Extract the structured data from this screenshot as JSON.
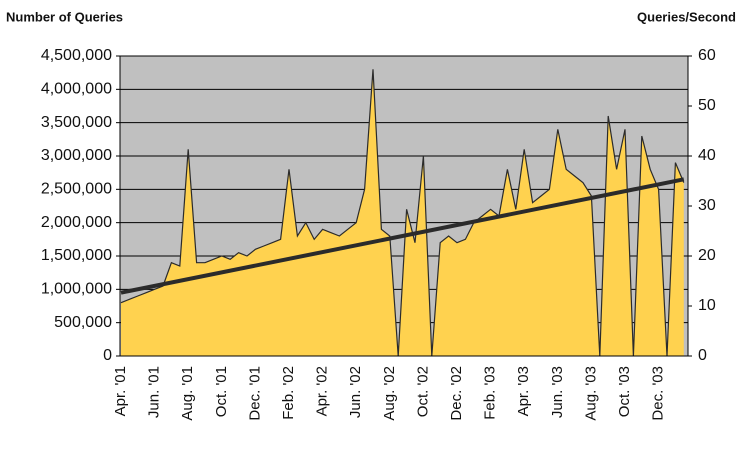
{
  "chart_data": {
    "type": "area",
    "y_axis_label": "Number of Queries",
    "y2_axis_label": "Queries/Second",
    "categories": [
      "Apr. '01",
      null,
      null,
      null,
      "Jun. '01",
      null,
      null,
      null,
      "Aug. '01",
      null,
      null,
      null,
      "Oct. '01",
      null,
      null,
      null,
      "Dec. '01",
      null,
      null,
      null,
      "Feb. '02",
      null,
      null,
      null,
      "Apr. '02",
      null,
      null,
      null,
      "Jun. '02",
      null,
      null,
      null,
      "Aug. '02",
      null,
      null,
      null,
      "Oct. '02",
      null,
      null,
      null,
      "Dec. '02",
      null,
      null,
      null,
      "Feb. '03",
      null,
      null,
      null,
      "Apr. '03",
      null,
      null,
      null,
      "Jun. '03",
      null,
      null,
      null,
      "Aug. '03",
      null,
      null,
      null,
      "Oct. '03",
      null,
      null,
      null,
      "Dec. '03",
      null,
      null,
      null
    ],
    "series": [
      {
        "name": "Number of Queries",
        "color": "#ffd24f",
        "line_color": "#2b2b2b",
        "values": [
          800000,
          850000,
          900000,
          950000,
          1000000,
          1050000,
          1400000,
          1350000,
          3100000,
          1400000,
          1400000,
          1450000,
          1500000,
          1450000,
          1550000,
          1500000,
          1600000,
          1650000,
          1700000,
          1750000,
          2800000,
          1800000,
          2000000,
          1750000,
          1900000,
          1850000,
          1800000,
          1900000,
          2000000,
          2500000,
          4300000,
          1900000,
          1800000,
          0,
          2200000,
          1700000,
          3000000,
          0,
          1700000,
          1800000,
          1700000,
          1750000,
          2000000,
          2100000,
          2200000,
          2100000,
          2800000,
          2200000,
          3100000,
          2300000,
          2400000,
          2500000,
          3400000,
          2800000,
          2700000,
          2600000,
          2400000,
          0,
          3600000,
          2800000,
          3400000,
          0,
          3300000,
          2800000,
          2500000,
          0,
          2900000,
          2600000
        ]
      }
    ],
    "trend": {
      "color": "#2b2b2b",
      "values": [
        950000,
        2650000
      ]
    },
    "ylim": [
      0,
      4500000
    ],
    "yticks": [
      0,
      {
        "value": 500000,
        "label": "500,000"
      },
      {
        "value": 1000000,
        "label": "1,000,000"
      },
      {
        "value": 1500000,
        "label": "1,500,000"
      },
      {
        "value": 2000000,
        "label": "2,000,000"
      },
      {
        "value": 2500000,
        "label": "2,500,000"
      },
      {
        "value": 3000000,
        "label": "3,000,000"
      },
      {
        "value": 3500000,
        "label": "3,500,000"
      },
      {
        "value": 4000000,
        "label": "4,000,000"
      },
      {
        "value": 4500000,
        "label": "4,500,000"
      }
    ],
    "y2lim": [
      0,
      60
    ],
    "y2ticks": [
      0,
      10,
      20,
      30,
      40,
      50,
      60
    ],
    "grid": true,
    "background": "#c0c0c0"
  }
}
